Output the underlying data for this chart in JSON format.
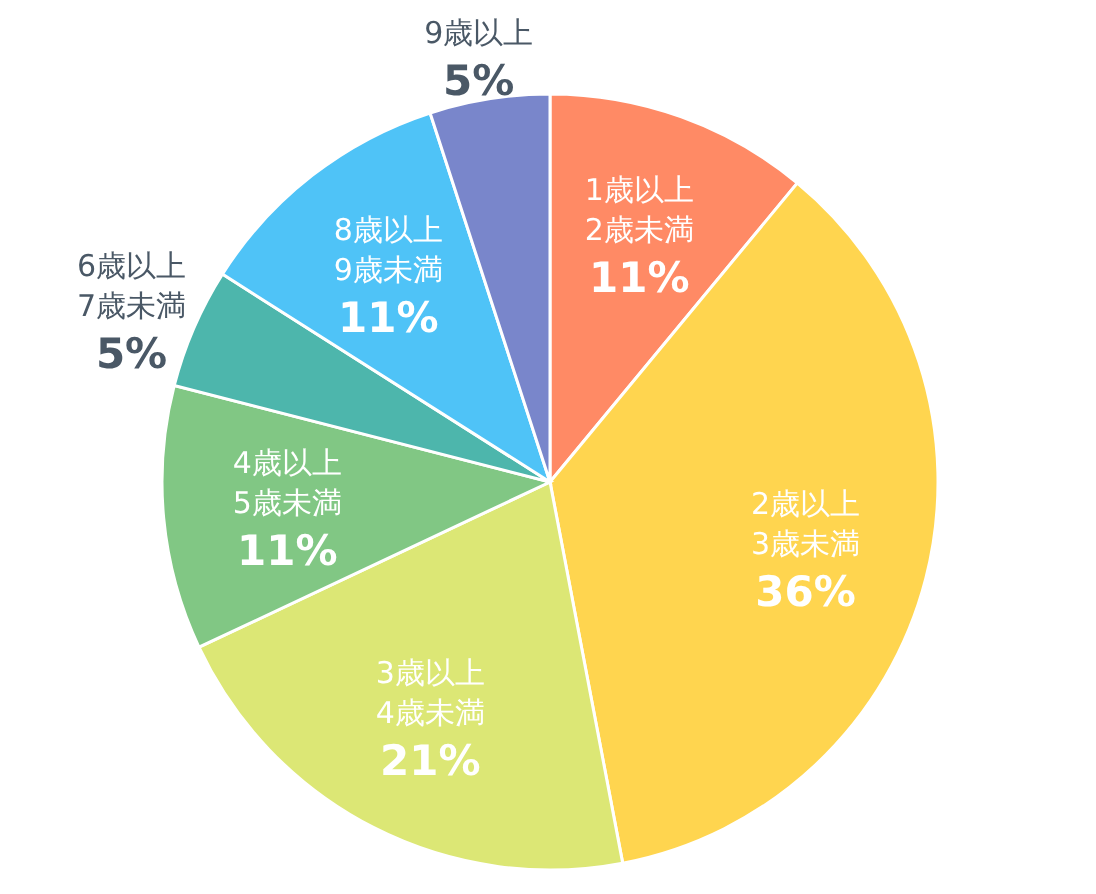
{
  "chart_data": {
    "type": "pie",
    "categories": [
      "1歳以上\n2歳未満",
      "2歳以上\n3歳未満",
      "3歳以上\n4歳未満",
      "4歳以上\n5歳未満",
      "6歳以上\n7歳未満",
      "8歳以上\n9歳未満",
      "9歳以上"
    ],
    "values": [
      11,
      36,
      21,
      11,
      5,
      11,
      5
    ],
    "colors": [
      "#ff8a65",
      "#ffd54f",
      "#dce775",
      "#81c784",
      "#4db6ac",
      "#4fc3f7",
      "#7986cb"
    ],
    "value_labels": [
      "11%",
      "36%",
      "21%",
      "11%",
      "5%",
      "11%",
      "5%"
    ],
    "legend": false
  }
}
